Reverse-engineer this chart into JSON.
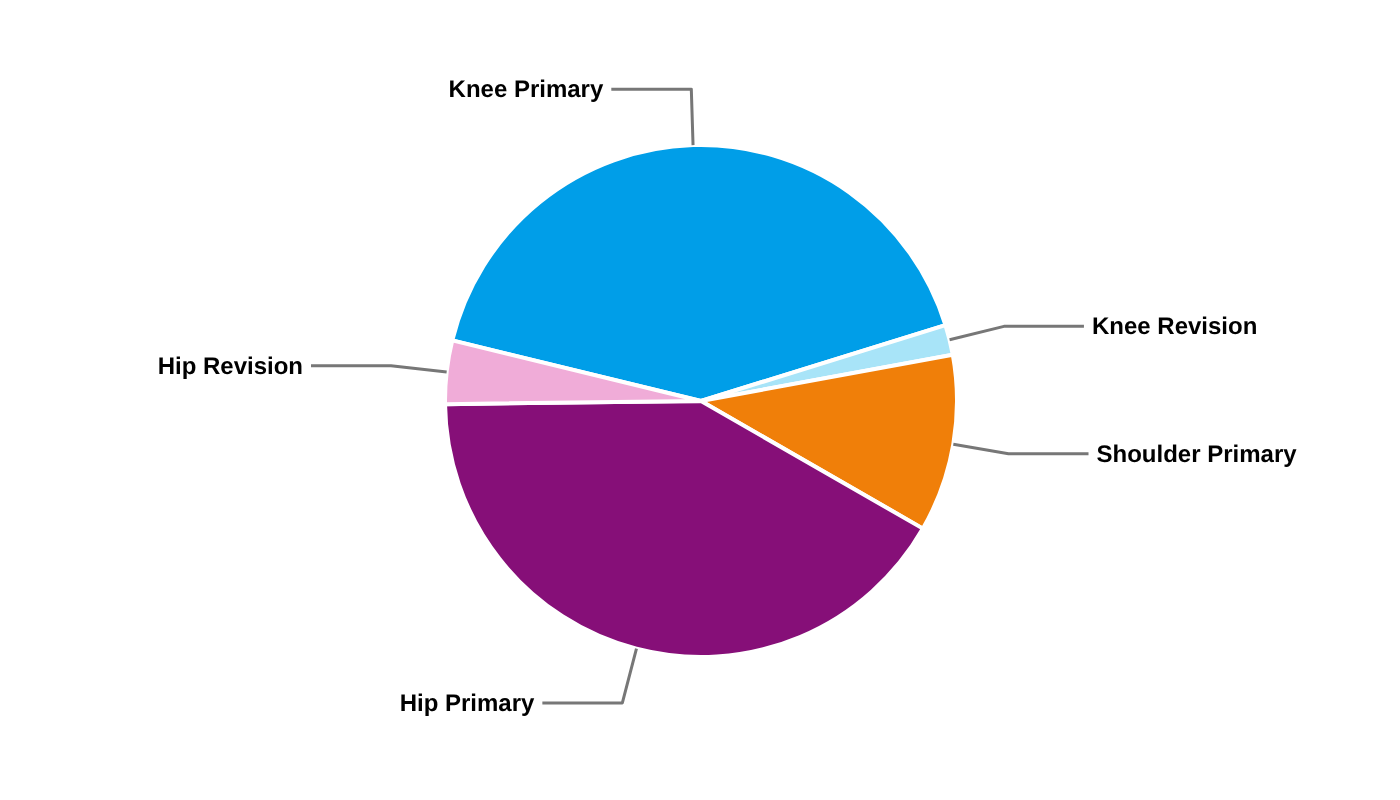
{
  "chart_data": {
    "type": "pie",
    "categories": [
      "Knee Primary",
      "Knee Revision",
      "Shoulder Primary",
      "Hip Primary",
      "Hip Revision"
    ],
    "values": [
      41.4,
      1.9,
      11.2,
      41.5,
      4.0
    ],
    "colors": [
      "#009ee8",
      "#a8e4f8",
      "#f07f09",
      "#860f78",
      "#f0acd8"
    ]
  }
}
